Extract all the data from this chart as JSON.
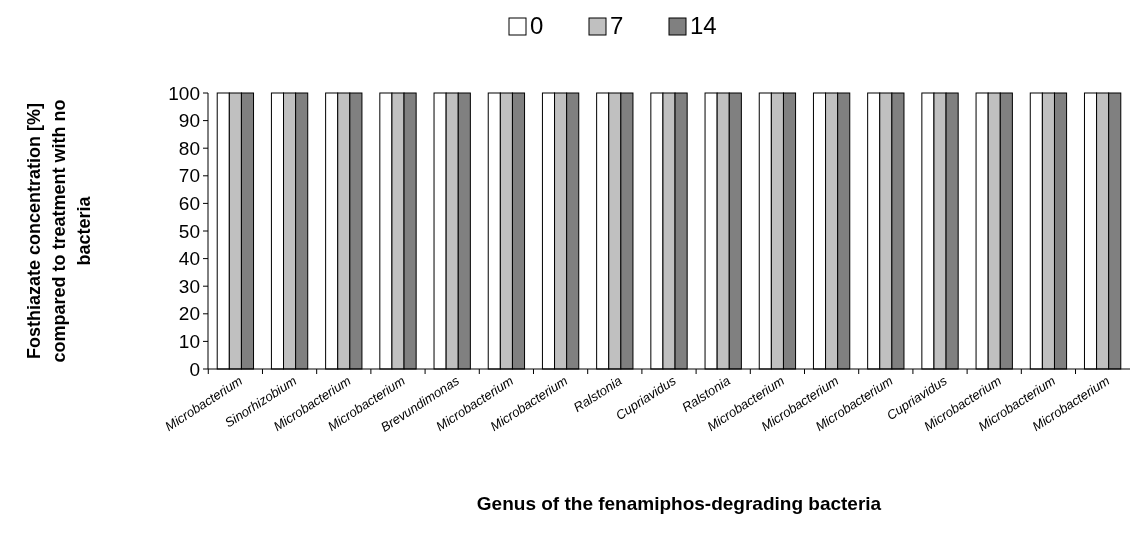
{
  "chart_data": {
    "type": "bar",
    "xlabel": "Genus of the fenamiphos-degrading bacteria",
    "ylabel": "Fosthiazate concentration [%]\ncompared to treatment with no\nbacteria",
    "categories": [
      "Microbacterium",
      "Sinorhizobium",
      "Microbacterium",
      "Microbacterium",
      "Brevundimonas",
      "Microbacterium",
      "Microbacterium",
      "Ralstonia",
      "Cupriavidus",
      "Ralstonia",
      "Microbacterium",
      "Microbacterium",
      "Microbacterium",
      "Cupriavidus",
      "Microbacterium",
      "Microbacterium",
      "Microbacterium"
    ],
    "series": [
      {
        "name": "0",
        "color": "#ffffff",
        "values": [
          100,
          100,
          100,
          100,
          100,
          100,
          100,
          100,
          100,
          100,
          100,
          100,
          100,
          100,
          100,
          100,
          100
        ]
      },
      {
        "name": "7",
        "color": "#c0c0c0",
        "values": [
          100,
          100,
          100,
          100,
          100,
          100,
          100,
          100,
          100,
          100,
          100,
          100,
          100,
          100,
          100,
          100,
          100
        ]
      },
      {
        "name": "14",
        "color": "#808080",
        "values": [
          100,
          100,
          100,
          100,
          100,
          100,
          100,
          100,
          100,
          100,
          100,
          100,
          100,
          100,
          100,
          100,
          100
        ]
      }
    ],
    "ylim": [
      0,
      100
    ],
    "yticks": [
      0,
      10,
      20,
      30,
      40,
      50,
      60,
      70,
      80,
      90,
      100
    ],
    "grid": false,
    "legend": "top"
  }
}
